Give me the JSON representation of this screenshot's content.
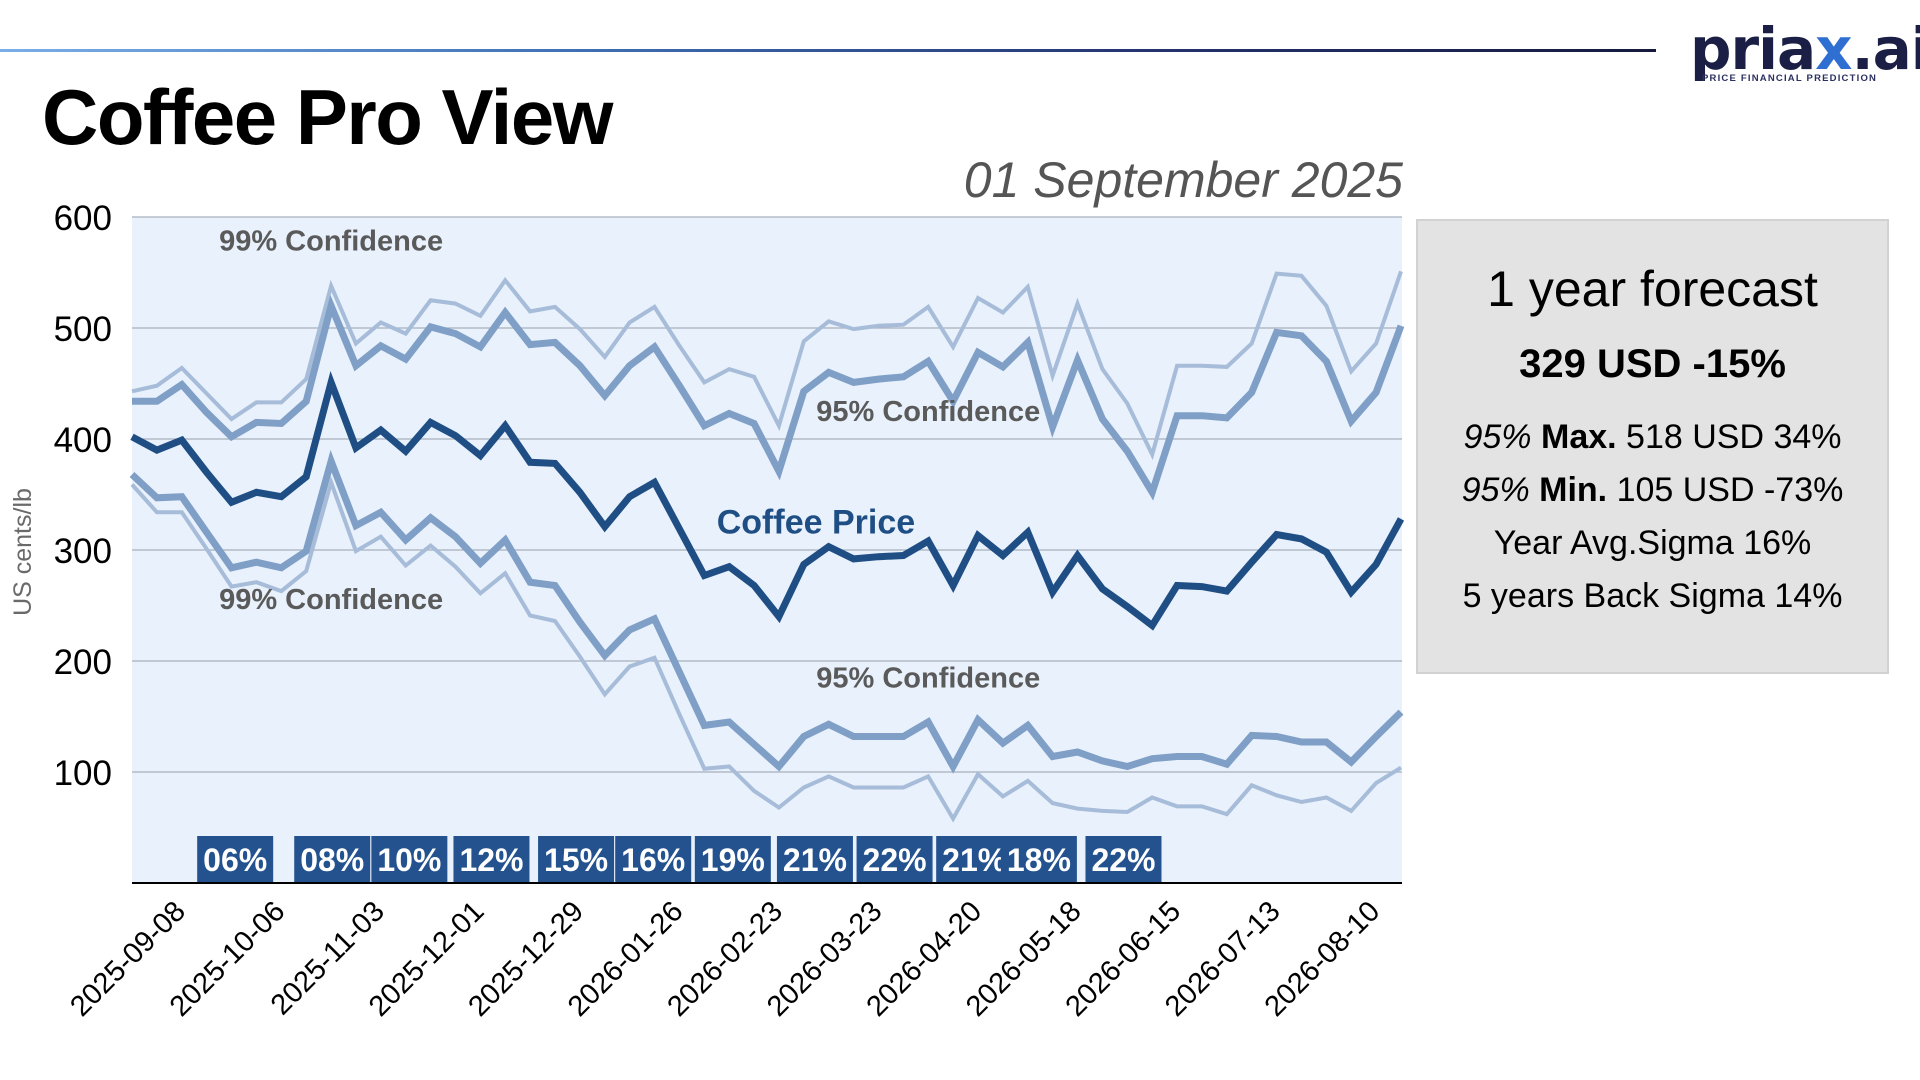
{
  "brand": {
    "logo_prefix": "pria",
    "logo_x": "x",
    "logo_suffix": ".ai",
    "tagline": "PRICE FINANCIAL PREDICTION",
    "colors": {
      "logo_dark": "#1b1f45",
      "logo_accent": "#2f6fd1"
    }
  },
  "header": {
    "title": "Coffee Pro View",
    "date": "01 September 2025"
  },
  "forecast_panel": {
    "title": "1 year forecast",
    "headline": "329 USD -15%",
    "max_line": {
      "conf": "95%",
      "label": "Max.",
      "value": "518 USD 34%"
    },
    "min_line": {
      "conf": "95%",
      "label": "Min.",
      "value": "105 USD -73%"
    },
    "year_sigma": "Year Avg.Sigma 16%",
    "back_sigma": "5 years Back Sigma 14%"
  },
  "chart_data": {
    "type": "line",
    "title": "",
    "xlabel": "",
    "ylabel": "US cents/lb",
    "ylim": [
      0,
      600
    ],
    "yticks": [
      100,
      200,
      300,
      400,
      500,
      600
    ],
    "grid": true,
    "x_tick_labels": [
      "2025-09-08",
      "2025-10-06",
      "2025-11-03",
      "2025-12-01",
      "2025-12-29",
      "2026-01-26",
      "2026-02-23",
      "2026-03-23",
      "2026-04-20",
      "2026-05-18",
      "2026-06-15",
      "2026-07-13",
      "2026-08-10"
    ],
    "x_tick_indices": [
      1,
      5,
      9,
      13,
      17,
      21,
      25,
      29,
      33,
      37,
      41,
      45,
      49
    ],
    "point_count": 52,
    "colors": {
      "plot_bg": "#e8f1fc",
      "price": "#1f4e85",
      "band95": "#7f9fc6",
      "band99": "#a6bcd8",
      "badge_bg": "#24528f",
      "annotation": "#5a5a5a"
    },
    "series": [
      {
        "name": "99% Upper",
        "values": [
          443,
          448,
          464,
          441,
          418,
          433,
          433,
          454,
          538,
          486,
          505,
          495,
          525,
          522,
          511,
          543,
          515,
          519,
          499,
          474,
          505,
          519,
          484,
          451,
          463,
          456,
          412,
          488,
          506,
          499,
          502,
          503,
          519,
          483,
          527,
          514,
          537,
          457,
          522,
          463,
          432,
          386,
          466,
          466,
          465,
          486,
          549,
          547,
          520,
          461,
          486,
          551
        ]
      },
      {
        "name": "95% Upper",
        "values": [
          434,
          434,
          449,
          424,
          402,
          415,
          414,
          434,
          520,
          466,
          484,
          472,
          501,
          495,
          483,
          514,
          485,
          487,
          466,
          439,
          466,
          483,
          448,
          412,
          423,
          414,
          371,
          443,
          460,
          451,
          454,
          456,
          470,
          434,
          478,
          465,
          487,
          411,
          471,
          418,
          389,
          352,
          421,
          421,
          419,
          442,
          496,
          493,
          470,
          416,
          442,
          502
        ]
      },
      {
        "name": "Coffee Price",
        "values": [
          402,
          390,
          399,
          370,
          343,
          352,
          348,
          366,
          451,
          392,
          408,
          389,
          415,
          403,
          385,
          412,
          379,
          378,
          352,
          321,
          348,
          361,
          319,
          277,
          285,
          268,
          240,
          287,
          303,
          292,
          294,
          295,
          308,
          268,
          313,
          295,
          316,
          262,
          295,
          265,
          249,
          232,
          268,
          267,
          263,
          289,
          314,
          310,
          298,
          262,
          287,
          328
        ]
      },
      {
        "name": "95% Lower",
        "values": [
          368,
          347,
          348,
          316,
          284,
          289,
          284,
          299,
          380,
          322,
          334,
          309,
          329,
          312,
          288,
          309,
          271,
          268,
          235,
          205,
          228,
          238,
          190,
          142,
          145,
          125,
          105,
          132,
          143,
          132,
          132,
          132,
          145,
          105,
          147,
          126,
          142,
          114,
          118,
          110,
          105,
          112,
          114,
          114,
          107,
          133,
          132,
          127,
          127,
          109,
          132,
          154
        ]
      },
      {
        "name": "99% Lower",
        "values": [
          359,
          334,
          334,
          301,
          267,
          271,
          263,
          281,
          361,
          299,
          312,
          286,
          304,
          285,
          261,
          279,
          241,
          236,
          204,
          170,
          195,
          203,
          152,
          103,
          105,
          83,
          68,
          86,
          96,
          86,
          86,
          86,
          96,
          58,
          98,
          78,
          92,
          72,
          67,
          65,
          64,
          77,
          69,
          69,
          62,
          88,
          79,
          73,
          77,
          65,
          90,
          104
        ]
      }
    ],
    "annotations": [
      {
        "text": "99% Confidence",
        "at_index": 3.5,
        "at_value": 570
      },
      {
        "text": "99% Confidence",
        "at_index": 3.5,
        "at_value": 247
      },
      {
        "text": "95% Confidence",
        "at_index": 27.5,
        "at_value": 416
      },
      {
        "text": "95% Confidence",
        "at_index": 27.5,
        "at_value": 176
      },
      {
        "text": "Coffee Price",
        "at_index": 23.5,
        "at_value": 315
      }
    ],
    "sigma_badges": [
      {
        "label": "06%",
        "at_index": 2.7
      },
      {
        "label": "08%",
        "at_index": 6.6
      },
      {
        "label": "10%",
        "at_index": 9.7
      },
      {
        "label": "12%",
        "at_index": 13.0
      },
      {
        "label": "15%",
        "at_index": 16.4
      },
      {
        "label": "16%",
        "at_index": 19.5
      },
      {
        "label": "19%",
        "at_index": 22.7
      },
      {
        "label": "21%",
        "at_index": 26.0
      },
      {
        "label": "22%",
        "at_index": 29.2
      },
      {
        "label": "21%",
        "at_index": 32.4
      },
      {
        "label": "18%",
        "at_index": 35.0
      },
      {
        "label": "22%",
        "at_index": 38.4
      }
    ]
  }
}
